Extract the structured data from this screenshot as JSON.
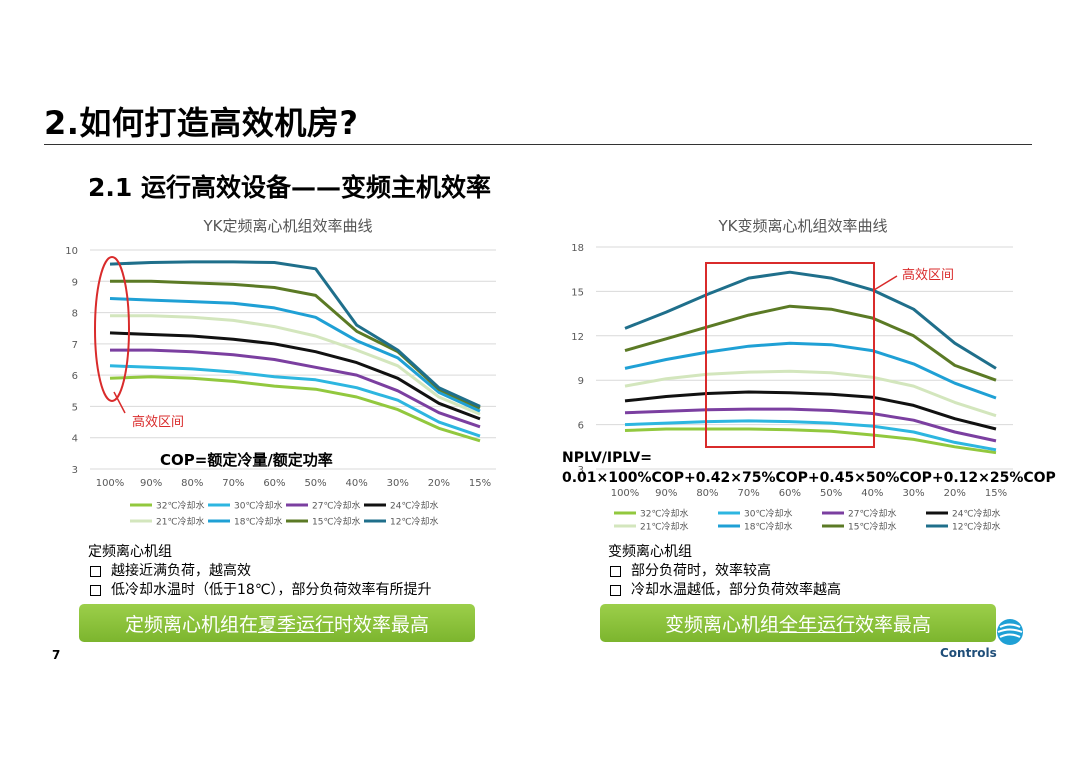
{
  "page": {
    "title": "2.如何打造高效机房?",
    "subtitle": "2.1 运行高效设备——变频主机效率",
    "page_number": "7",
    "logo_text": "Controls"
  },
  "left": {
    "note_title": "定频离心机组",
    "notes": [
      "越接近满负荷，越高效",
      "低冷却水温时（低于18℃），部分负荷效率有所提升"
    ],
    "bar_pre": "定频离心机组在",
    "bar_u": "夏季运行",
    "bar_post": "时效率最高",
    "cop_label": "COP=额定冷量/额定功率"
  },
  "right": {
    "note_title": "变频离心机组",
    "notes": [
      "部分负荷时，效率较高",
      "冷却水温越低，部分负荷效率越高"
    ],
    "bar_pre": "变频离心机组",
    "bar_u": "全年运行",
    "bar_post": "效率最高",
    "formula_line1": "NPLV/IPLV=",
    "formula_line2": "0.01×100%COP+0.42×75%COP+0.45×50%COP+0.12×25%COP"
  },
  "chart_data": [
    {
      "type": "line",
      "title": "YK定频离心机组效率曲线",
      "categories": [
        "100%",
        "90%",
        "80%",
        "70%",
        "60%",
        "50%",
        "40%",
        "30%",
        "20%",
        "15%"
      ],
      "ylim": [
        3,
        10
      ],
      "yticks": [
        "3",
        "4",
        "5",
        "6",
        "7",
        "8",
        "9",
        "10"
      ],
      "annotation": "高效区间",
      "series": [
        {
          "name": "32℃冷却水",
          "color": "#92c83e",
          "values": [
            5.9,
            5.95,
            5.9,
            5.8,
            5.65,
            5.55,
            5.3,
            4.9,
            4.3,
            3.9
          ]
        },
        {
          "name": "30℃冷却水",
          "color": "#2db6e0",
          "values": [
            6.3,
            6.25,
            6.2,
            6.1,
            5.95,
            5.85,
            5.6,
            5.2,
            4.5,
            4.05
          ]
        },
        {
          "name": "27℃冷却水",
          "color": "#7b3fa0",
          "values": [
            6.8,
            6.8,
            6.75,
            6.65,
            6.5,
            6.25,
            6.0,
            5.5,
            4.8,
            4.35
          ]
        },
        {
          "name": "24℃冷却水",
          "color": "#111111",
          "values": [
            7.35,
            7.3,
            7.25,
            7.15,
            7.0,
            6.75,
            6.4,
            5.9,
            5.1,
            4.6
          ]
        },
        {
          "name": "21℃冷却水",
          "color": "#d3e6bd",
          "values": [
            7.9,
            7.9,
            7.85,
            7.75,
            7.55,
            7.25,
            6.8,
            6.3,
            5.3,
            4.75
          ]
        },
        {
          "name": "18℃冷却水",
          "color": "#1fa0d5",
          "values": [
            8.45,
            8.4,
            8.35,
            8.3,
            8.15,
            7.85,
            7.1,
            6.55,
            5.45,
            4.85
          ]
        },
        {
          "name": "15℃冷却水",
          "color": "#5b7a25",
          "values": [
            9.0,
            9.0,
            8.95,
            8.9,
            8.8,
            8.55,
            7.4,
            6.75,
            5.55,
            4.95
          ]
        },
        {
          "name": "12℃冷却水",
          "color": "#1f6f8b",
          "values": [
            9.55,
            9.6,
            9.62,
            9.62,
            9.6,
            9.4,
            7.6,
            6.8,
            5.6,
            5.0
          ]
        }
      ]
    },
    {
      "type": "line",
      "title": "YK变频离心机组效率曲线",
      "categories": [
        "100%",
        "90%",
        "80%",
        "70%",
        "60%",
        "50%",
        "40%",
        "30%",
        "20%",
        "15%"
      ],
      "ylim": [
        3,
        18
      ],
      "yticks": [
        "3",
        "6",
        "9",
        "12",
        "15",
        "18"
      ],
      "annotation": "高效区间",
      "series": [
        {
          "name": "32℃冷却水",
          "color": "#92c83e",
          "values": [
            5.6,
            5.7,
            5.7,
            5.7,
            5.65,
            5.55,
            5.3,
            5.0,
            4.5,
            4.1
          ]
        },
        {
          "name": "30℃冷却水",
          "color": "#2db6e0",
          "values": [
            6.0,
            6.1,
            6.2,
            6.25,
            6.2,
            6.1,
            5.9,
            5.5,
            4.8,
            4.3
          ]
        },
        {
          "name": "27℃冷却水",
          "color": "#7b3fa0",
          "values": [
            6.8,
            6.9,
            7.0,
            7.05,
            7.05,
            6.95,
            6.75,
            6.3,
            5.5,
            4.9
          ]
        },
        {
          "name": "24℃冷却水",
          "color": "#111111",
          "values": [
            7.6,
            7.9,
            8.1,
            8.2,
            8.15,
            8.05,
            7.85,
            7.3,
            6.4,
            5.7
          ]
        },
        {
          "name": "21℃冷却水",
          "color": "#d3e6bd",
          "values": [
            8.6,
            9.1,
            9.4,
            9.55,
            9.6,
            9.5,
            9.2,
            8.6,
            7.5,
            6.6
          ]
        },
        {
          "name": "18℃冷却水",
          "color": "#1fa0d5",
          "values": [
            9.8,
            10.4,
            10.9,
            11.3,
            11.5,
            11.4,
            11.0,
            10.1,
            8.8,
            7.8
          ]
        },
        {
          "name": "15℃冷却水",
          "color": "#5b7a25",
          "values": [
            11.0,
            11.8,
            12.6,
            13.4,
            14.0,
            13.8,
            13.2,
            12.0,
            10.0,
            9.0
          ]
        },
        {
          "name": "12℃冷却水",
          "color": "#1f6f8b",
          "values": [
            12.5,
            13.6,
            14.8,
            15.9,
            16.3,
            15.9,
            15.1,
            13.8,
            11.5,
            9.8
          ]
        }
      ]
    }
  ]
}
